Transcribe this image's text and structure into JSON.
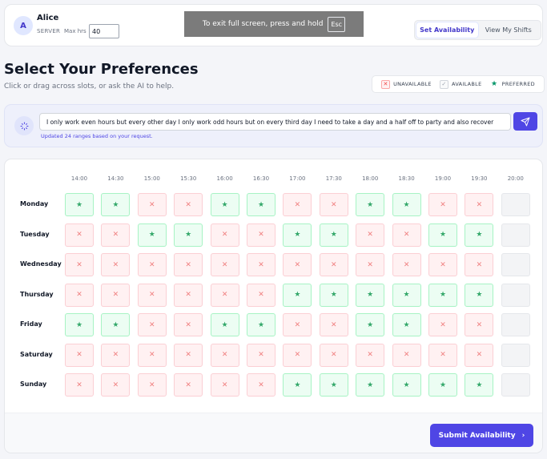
{
  "header": {
    "avatar_initial": "A",
    "user_name": "Alice",
    "role": "SERVER",
    "max_hrs_label": "Max hrs",
    "max_hrs_value": "40",
    "tabs": [
      {
        "label": "Set Availability",
        "active": true
      },
      {
        "label": "View My Shifts",
        "active": false
      }
    ]
  },
  "fullscreen_banner": {
    "text": "To exit full screen, press and hold",
    "key": "Esc"
  },
  "page": {
    "title": "Select Your Preferences",
    "subtitle": "Click or drag across slots, or ask the AI to help."
  },
  "legend": {
    "unavailable": "UNAVAILABLE",
    "available": "AVAILABLE",
    "preferred": "PREFERRED",
    "unavailable_glyph": "✕",
    "available_glyph": "✓",
    "preferred_glyph": "★"
  },
  "ai": {
    "prompt": "I only work even hours but every other day I only work odd hours but on every third day I need to take a day and a half off to party and also recover",
    "status": "Updated 24 ranges based on your request."
  },
  "grid": {
    "times": [
      "14:00",
      "14:30",
      "15:00",
      "15:30",
      "16:00",
      "16:30",
      "17:00",
      "17:30",
      "18:00",
      "18:30",
      "19:00",
      "19:30",
      "20:00"
    ],
    "days": [
      {
        "name": "Monday",
        "slots": [
          "P",
          "P",
          "U",
          "U",
          "P",
          "P",
          "U",
          "U",
          "P",
          "P",
          "U",
          "U",
          "A"
        ]
      },
      {
        "name": "Tuesday",
        "slots": [
          "U",
          "U",
          "P",
          "P",
          "U",
          "U",
          "P",
          "P",
          "U",
          "U",
          "P",
          "P",
          "A"
        ]
      },
      {
        "name": "Wednesday",
        "slots": [
          "U",
          "U",
          "U",
          "U",
          "U",
          "U",
          "U",
          "U",
          "U",
          "U",
          "U",
          "U",
          "A"
        ]
      },
      {
        "name": "Thursday",
        "slots": [
          "U",
          "U",
          "U",
          "U",
          "U",
          "U",
          "P",
          "P",
          "P",
          "P",
          "P",
          "P",
          "A"
        ]
      },
      {
        "name": "Friday",
        "slots": [
          "P",
          "P",
          "U",
          "U",
          "P",
          "P",
          "U",
          "U",
          "P",
          "P",
          "U",
          "U",
          "A"
        ]
      },
      {
        "name": "Saturday",
        "slots": [
          "U",
          "U",
          "U",
          "U",
          "U",
          "U",
          "U",
          "U",
          "U",
          "U",
          "U",
          "U",
          "A"
        ]
      },
      {
        "name": "Sunday",
        "slots": [
          "U",
          "U",
          "U",
          "U",
          "U",
          "U",
          "P",
          "P",
          "P",
          "P",
          "P",
          "P",
          "A"
        ]
      }
    ]
  },
  "footer": {
    "submit_label": "Submit Availability",
    "submit_icon": "›"
  },
  "colors": {
    "accent": "#4f46e5",
    "unavailable": "#f08080",
    "preferred": "#34a86a"
  }
}
